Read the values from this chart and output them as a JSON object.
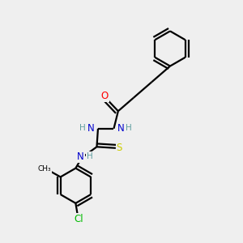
{
  "bg_color": "#efefef",
  "bond_color": "#000000",
  "bond_width": 1.6,
  "atom_colors": {
    "O": "#ff0000",
    "N": "#0000cd",
    "S": "#cccc00",
    "Cl": "#00bb00",
    "C": "#000000",
    "H": "#5f9ea0"
  },
  "font_size_atom": 8.5,
  "font_size_h": 7.5,
  "font_size_cl": 8.5
}
